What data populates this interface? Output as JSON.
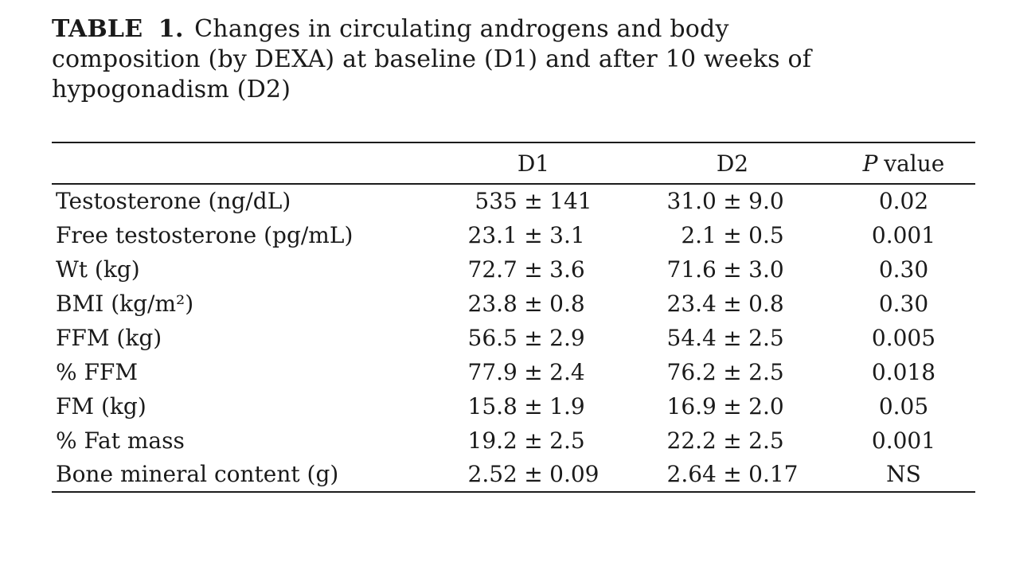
{
  "title": {
    "label": "TABLE 1.",
    "line1_rest": "Changes in circulating androgens and body",
    "line2": "composition (by DEXA) at baseline (D1) and after 10 weeks of",
    "line3": "hypogonadism (D2)"
  },
  "table": {
    "columns": {
      "param": "",
      "d1": "D1",
      "d2": "D2",
      "p_italic": "P",
      "p_rest": "value"
    },
    "rows": [
      {
        "label": "Testosterone (ng/dL)",
        "d1": "535 ± 141",
        "d2": "31.0 ± 9.0",
        "p": "0.02"
      },
      {
        "label": "Free testosterone (pg/mL)",
        "d1": "23.1 ± 3.1",
        "d2": "2.1 ± 0.5",
        "p": "0.001"
      },
      {
        "label": "Wt (kg)",
        "d1": "72.7 ± 3.6",
        "d2": "71.6 ± 3.0",
        "p": "0.30"
      },
      {
        "label": "BMI (kg/m²)",
        "d1": "23.8 ± 0.8",
        "d2": "23.4 ± 0.8",
        "p": "0.30"
      },
      {
        "label": "FFM (kg)",
        "d1": "56.5 ± 2.9",
        "d2": "54.4 ± 2.5",
        "p": "0.005"
      },
      {
        "label": "% FFM",
        "d1": "77.9 ± 2.4",
        "d2": "76.2 ± 2.5",
        "p": "0.018"
      },
      {
        "label": "FM (kg)",
        "d1": "15.8 ± 1.9",
        "d2": "16.9 ± 2.0",
        "p": "0.05"
      },
      {
        "label": "% Fat mass",
        "d1": "19.2 ± 2.5",
        "d2": "22.2 ± 2.5",
        "p": "0.001"
      },
      {
        "label": "Bone mineral content (g)",
        "d1": "2.52 ± 0.09",
        "d2": "2.64 ± 0.17",
        "p": "NS"
      }
    ]
  },
  "colors": {
    "text": "#1a1a1a",
    "rule": "#1c1c1c",
    "background": "#ffffff"
  }
}
